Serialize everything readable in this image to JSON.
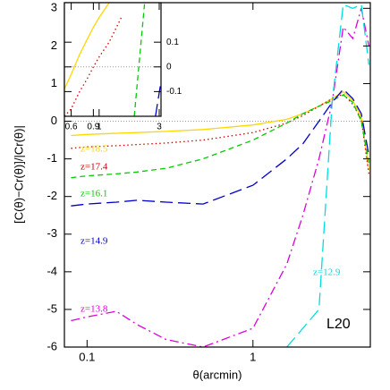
{
  "chart_data": [
    {
      "type": "line",
      "xlabel": "θ(arcmin)",
      "ylabel": "[C(θ)−Cr(θ)]/|Cr(θ)|",
      "annotation": "L20",
      "xscale": "log",
      "xlim": [
        0.073,
        5.1
      ],
      "ylim": [
        -6,
        3.15
      ],
      "xticks": [
        0.1,
        1
      ],
      "yticks": [
        -6,
        -5,
        -4,
        -3,
        -2,
        -1,
        0,
        1,
        2,
        3
      ],
      "zero_line": true,
      "x": [
        0.08,
        0.1,
        0.15,
        0.2,
        0.3,
        0.5,
        1,
        1.6,
        2,
        2.5,
        3,
        3.5,
        4,
        4.5,
        5
      ],
      "series": [
        {
          "name": "z=18.5",
          "color": "#ffd700",
          "style": "solid",
          "values": [
            -0.38,
            -0.35,
            -0.32,
            -0.3,
            -0.27,
            -0.22,
            -0.1,
            0.05,
            0.2,
            0.4,
            0.6,
            0.78,
            0.55,
            0.1,
            -1.3
          ]
        },
        {
          "name": "z=17.4",
          "color": "#cc0000",
          "style": "dotted",
          "values": [
            -0.72,
            -0.68,
            -0.65,
            -0.62,
            -0.58,
            -0.5,
            -0.3,
            -0.05,
            0.15,
            0.4,
            0.6,
            0.72,
            0.45,
            0.05,
            -1.4
          ]
        },
        {
          "name": "z=16.1",
          "color": "#00cc00",
          "style": "dashed",
          "values": [
            -1.5,
            -1.45,
            -1.4,
            -1.35,
            -1.25,
            -1.0,
            -0.5,
            -0.05,
            0.2,
            0.4,
            0.55,
            0.7,
            0.5,
            0,
            -1.1
          ]
        },
        {
          "name": "z=14.9",
          "color": "#0000cc",
          "style": "longdash",
          "values": [
            -2.25,
            -2.2,
            -2.15,
            -2.1,
            -2.15,
            -2.2,
            -1.7,
            -1.0,
            -0.6,
            0,
            0.5,
            0.85,
            0.6,
            0.2,
            -0.9
          ]
        },
        {
          "name": "z=13.8",
          "color": "#dd00dd",
          "style": "dashdot",
          "values": [
            -5.3,
            -5.2,
            -5.05,
            -5.4,
            -5.8,
            -6.0,
            -5.5,
            -3.8,
            -2.5,
            -1,
            0.5,
            2.5,
            2.2,
            3.0,
            2.0
          ]
        },
        {
          "name": "z=12.9",
          "color": "#00dddd",
          "style": "longdash",
          "values": [
            null,
            null,
            null,
            null,
            null,
            null,
            null,
            -6,
            -5.5,
            -5,
            0.5,
            3.1,
            3.0,
            3.1,
            1.5
          ]
        }
      ]
    },
    {
      "type": "line",
      "xscale": "log",
      "xlim": [
        0.53,
        3.1
      ],
      "ylim": [
        -0.2,
        0.26
      ],
      "xticks": [
        0.6,
        0.9,
        1,
        3
      ],
      "yticks": [
        0.1,
        0,
        -0.1
      ],
      "zero_line": true,
      "x": [
        0.53,
        0.6,
        0.7,
        0.8,
        0.9,
        1,
        1.2,
        1.5,
        1.9,
        2.3,
        2.8,
        3.1
      ],
      "series": [
        {
          "color": "#ffd700",
          "style": "solid",
          "values": [
            -0.09,
            -0.03,
            0.05,
            0.11,
            0.16,
            0.2,
            0.26,
            null,
            null,
            null,
            null,
            null
          ]
        },
        {
          "color": "#cc0000",
          "style": "dotted",
          "values": [
            -0.2,
            -0.17,
            -0.1,
            -0.05,
            0,
            0.04,
            0.1,
            0.2,
            null,
            null,
            null,
            null
          ]
        },
        {
          "color": "#00cc00",
          "style": "dashed",
          "values": [
            null,
            null,
            null,
            null,
            null,
            null,
            null,
            null,
            -0.2,
            0.26,
            null,
            null
          ]
        },
        {
          "color": "#0000cc",
          "style": "longdash",
          "values": [
            null,
            null,
            null,
            null,
            null,
            null,
            null,
            null,
            null,
            null,
            -0.2,
            -0.06
          ]
        }
      ]
    }
  ]
}
